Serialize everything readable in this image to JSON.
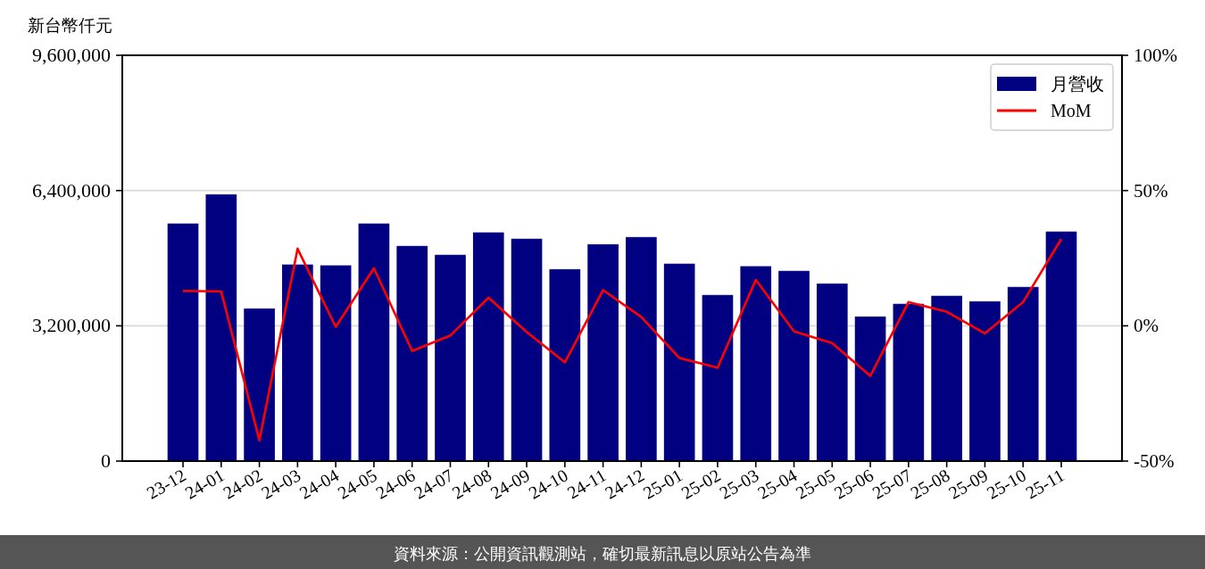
{
  "chart_data": {
    "type": "bar",
    "ylabel": "新台幣仟元",
    "categories": [
      "23-12",
      "24-01",
      "24-02",
      "24-03",
      "24-04",
      "24-05",
      "24-06",
      "24-07",
      "24-08",
      "24-09",
      "24-10",
      "24-11",
      "24-12",
      "25-01",
      "25-02",
      "25-03",
      "25-04",
      "25-05",
      "25-06",
      "25-07",
      "25-08",
      "25-09",
      "25-10",
      "25-11"
    ],
    "series": [
      {
        "name": "月營收",
        "color": "#000080",
        "values": [
          5620000,
          6310000,
          3610000,
          4650000,
          4630000,
          5620000,
          5090000,
          4880000,
          5410000,
          5260000,
          4540000,
          5130000,
          5300000,
          4670000,
          3930000,
          4610000,
          4500000,
          4200000,
          3420000,
          3720000,
          3910000,
          3780000,
          4120000,
          5430000
        ]
      },
      {
        "name": "MoM",
        "type": "line",
        "color": "#ff0000",
        "axis": "y2",
        "values": [
          12.9,
          12.7,
          -42.3,
          28.5,
          -0.4,
          21.3,
          -9.3,
          -3.6,
          10.4,
          -2.3,
          -13.5,
          13.2,
          3.3,
          -11.9,
          -15.5,
          17.0,
          -2.0,
          -6.4,
          -18.5,
          8.8,
          5.2,
          -2.8,
          8.8,
          32.1
        ]
      }
    ],
    "ylim": [
      0,
      9600000
    ],
    "yticks": [
      0,
      {
        "value": 3200000,
        "label": "3,200,000"
      },
      {
        "value": 6400000,
        "label": "6,400,000"
      },
      {
        "value": 9600000,
        "label": "9,600,000"
      }
    ],
    "y2lim": [
      -50,
      100
    ],
    "y2ticks": [
      {
        "value": -50,
        "label": "-50%"
      },
      {
        "value": 0,
        "label": "0%"
      },
      {
        "value": 50,
        "label": "50%"
      },
      {
        "value": 100,
        "label": "100%"
      }
    ],
    "grid": "y",
    "legend": "top right",
    "annotations": [
      "資料來源：公開資訊觀測站，確切最新訊息以原站公告為準"
    ]
  }
}
